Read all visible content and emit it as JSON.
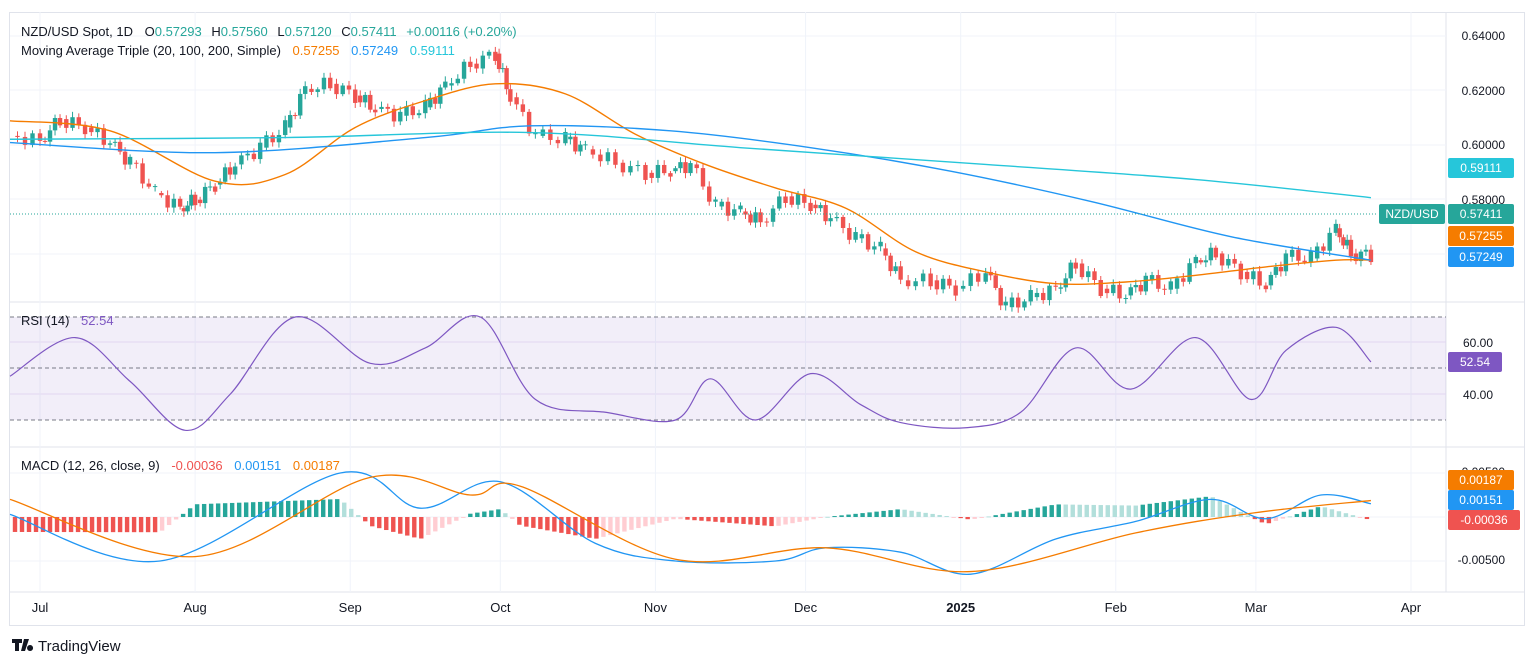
{
  "header": {
    "symbol": "NZD/USD Spot, 1D",
    "o_label": "O",
    "o": "0.57293",
    "h_label": "H",
    "h": "0.57560",
    "l_label": "L",
    "l": "0.57120",
    "c_label": "C",
    "c": "0.57411",
    "change": "+0.00116 (+0.20%)",
    "ma_title": "Moving Average Triple (20, 100, 200, Simple)",
    "ma20": "0.57255",
    "ma100": "0.57249",
    "ma200": "0.59111"
  },
  "rsi": {
    "title": "RSI (14)",
    "value": "52.54"
  },
  "macd": {
    "title": "MACD (12, 26, close, 9)",
    "hist": "-0.00036",
    "macd": "0.00151",
    "signal": "0.00187"
  },
  "price_axis": {
    "ticks": [
      "0.64000",
      "0.62000",
      "0.60000",
      "0.58000"
    ],
    "tags": {
      "ma200": "0.59111",
      "symbol": "NZD/USD",
      "last": "0.57411",
      "ma20": "0.57255",
      "ma100": "0.57249"
    }
  },
  "rsi_axis": {
    "ticks": [
      "60.00",
      "40.00"
    ],
    "tag": "52.54"
  },
  "macd_axis": {
    "ticks": [
      "0.00500",
      "-0.00500"
    ],
    "tags": {
      "signal": "0.00187",
      "macd": "0.00151",
      "hist": "-0.00036"
    }
  },
  "time_axis": [
    "Jul",
    "Aug",
    "Sep",
    "Oct",
    "Nov",
    "Dec",
    "2025",
    "Feb",
    "Mar",
    "Apr"
  ],
  "branding": "TradingView",
  "colors": {
    "up": "#26a69a",
    "down": "#ef5350",
    "ma20": "#f57c00",
    "ma100": "#2196f3",
    "ma200": "#26c6da",
    "rsi": "#7e57c2",
    "macd_line": "#2196f3",
    "signal_line": "#f57c00",
    "hist_up_strong": "#26a69a",
    "hist_up_weak": "#b2dfdb",
    "hist_dn_strong": "#ef5350",
    "hist_dn_weak": "#ffcdd2"
  },
  "chart_data": [
    {
      "type": "candlestick",
      "title": "NZD/USD Spot, 1D",
      "y_range": [
        0.566,
        0.644
      ],
      "x_range": [
        "2024-06-25",
        "2025-04-08"
      ],
      "series": [
        {
          "name": "Close",
          "values": [
            {
              "x": "2024-06-25",
              "y": 0.6095
            },
            {
              "x": "2024-07-01",
              "y": 0.608
            },
            {
              "x": "2024-07-05",
              "y": 0.6145
            },
            {
              "x": "2024-07-10",
              "y": 0.612
            },
            {
              "x": "2024-07-15",
              "y": 0.6075
            },
            {
              "x": "2024-07-19",
              "y": 0.6015
            },
            {
              "x": "2024-07-24",
              "y": 0.5925
            },
            {
              "x": "2024-07-29",
              "y": 0.588
            },
            {
              "x": "2024-08-01",
              "y": 0.5905
            },
            {
              "x": "2024-08-05",
              "y": 0.595
            },
            {
              "x": "2024-08-09",
              "y": 0.601
            },
            {
              "x": "2024-08-14",
              "y": 0.606
            },
            {
              "x": "2024-08-19",
              "y": 0.612
            },
            {
              "x": "2024-08-23",
              "y": 0.6235
            },
            {
              "x": "2024-08-28",
              "y": 0.625
            },
            {
              "x": "2024-09-02",
              "y": 0.6215
            },
            {
              "x": "2024-09-06",
              "y": 0.6175
            },
            {
              "x": "2024-09-11",
              "y": 0.6155
            },
            {
              "x": "2024-09-16",
              "y": 0.618
            },
            {
              "x": "2024-09-20",
              "y": 0.6245
            },
            {
              "x": "2024-09-25",
              "y": 0.631
            },
            {
              "x": "2024-09-30",
              "y": 0.634
            },
            {
              "x": "2024-10-03",
              "y": 0.621
            },
            {
              "x": "2024-10-08",
              "y": 0.6095
            },
            {
              "x": "2024-10-14",
              "y": 0.6085
            },
            {
              "x": "2024-10-18",
              "y": 0.6055
            },
            {
              "x": "2024-10-24",
              "y": 0.6015
            },
            {
              "x": "2024-10-30",
              "y": 0.5985
            },
            {
              "x": "2024-11-04",
              "y": 0.599
            },
            {
              "x": "2024-11-08",
              "y": 0.601
            },
            {
              "x": "2024-11-13",
              "y": 0.5885
            },
            {
              "x": "2024-11-18",
              "y": 0.587
            },
            {
              "x": "2024-11-22",
              "y": 0.584
            },
            {
              "x": "2024-11-27",
              "y": 0.5915
            },
            {
              "x": "2024-12-02",
              "y": 0.589
            },
            {
              "x": "2024-12-06",
              "y": 0.585
            },
            {
              "x": "2024-12-11",
              "y": 0.579
            },
            {
              "x": "2024-12-16",
              "y": 0.576
            },
            {
              "x": "2024-12-20",
              "y": 0.5665
            },
            {
              "x": "2024-12-26",
              "y": 0.5665
            },
            {
              "x": "2024-12-31",
              "y": 0.564
            },
            {
              "x": "2025-01-06",
              "y": 0.569
            },
            {
              "x": "2025-01-10",
              "y": 0.5585
            },
            {
              "x": "2025-01-15",
              "y": 0.5615
            },
            {
              "x": "2025-01-20",
              "y": 0.564
            },
            {
              "x": "2025-01-24",
              "y": 0.5715
            },
            {
              "x": "2025-01-29",
              "y": 0.564
            },
            {
              "x": "2025-02-03",
              "y": 0.562
            },
            {
              "x": "2025-02-07",
              "y": 0.5665
            },
            {
              "x": "2025-02-12",
              "y": 0.564
            },
            {
              "x": "2025-02-17",
              "y": 0.5725
            },
            {
              "x": "2025-02-21",
              "y": 0.5745
            },
            {
              "x": "2025-02-26",
              "y": 0.569
            },
            {
              "x": "2025-03-03",
              "y": 0.565
            },
            {
              "x": "2025-03-07",
              "y": 0.5735
            },
            {
              "x": "2025-03-12",
              "y": 0.573
            },
            {
              "x": "2025-03-17",
              "y": 0.582
            },
            {
              "x": "2025-03-20",
              "y": 0.5745
            },
            {
              "x": "2025-03-24",
              "y": 0.5741
            }
          ]
        },
        {
          "name": "MA 20",
          "values": [
            {
              "x": "2024-06-25",
              "y": 0.614
            },
            {
              "x": "2024-07-15",
              "y": 0.611
            },
            {
              "x": "2024-08-05",
              "y": 0.596
            },
            {
              "x": "2024-08-19",
              "y": 0.598
            },
            {
              "x": "2024-09-02",
              "y": 0.612
            },
            {
              "x": "2024-09-16",
              "y": 0.62
            },
            {
              "x": "2024-09-30",
              "y": 0.625
            },
            {
              "x": "2024-10-14",
              "y": 0.622
            },
            {
              "x": "2024-10-28",
              "y": 0.61
            },
            {
              "x": "2024-11-11",
              "y": 0.601
            },
            {
              "x": "2024-11-25",
              "y": 0.594
            },
            {
              "x": "2024-12-09",
              "y": 0.588
            },
            {
              "x": "2024-12-23",
              "y": 0.575
            },
            {
              "x": "2025-01-06",
              "y": 0.569
            },
            {
              "x": "2025-01-20",
              "y": 0.5655
            },
            {
              "x": "2025-02-03",
              "y": 0.566
            },
            {
              "x": "2025-02-17",
              "y": 0.568
            },
            {
              "x": "2025-03-03",
              "y": 0.5705
            },
            {
              "x": "2025-03-17",
              "y": 0.5725
            },
            {
              "x": "2025-03-24",
              "y": 0.57255
            }
          ]
        },
        {
          "name": "MA 100",
          "values": [
            {
              "x": "2024-06-25",
              "y": 0.6075
            },
            {
              "x": "2024-08-05",
              "y": 0.6045
            },
            {
              "x": "2024-09-16",
              "y": 0.609
            },
            {
              "x": "2024-10-07",
              "y": 0.6125
            },
            {
              "x": "2024-11-04",
              "y": 0.611
            },
            {
              "x": "2024-12-02",
              "y": 0.606
            },
            {
              "x": "2024-12-30",
              "y": 0.599
            },
            {
              "x": "2025-01-27",
              "y": 0.59
            },
            {
              "x": "2025-02-24",
              "y": 0.5795
            },
            {
              "x": "2025-03-24",
              "y": 0.57249
            }
          ]
        },
        {
          "name": "MA 200",
          "values": [
            {
              "x": "2024-06-25",
              "y": 0.6085
            },
            {
              "x": "2024-08-19",
              "y": 0.609
            },
            {
              "x": "2024-10-07",
              "y": 0.6105
            },
            {
              "x": "2024-11-18",
              "y": 0.606
            },
            {
              "x": "2025-01-06",
              "y": 0.601
            },
            {
              "x": "2025-02-17",
              "y": 0.5965
            },
            {
              "x": "2025-03-24",
              "y": 0.59111
            }
          ]
        }
      ],
      "y_ticks": [
        "0.64000",
        "0.62000",
        "0.60000",
        "0.58000"
      ],
      "x_ticks": [
        "Jul",
        "Aug",
        "Sep",
        "Oct",
        "Nov",
        "Dec",
        "2025",
        "Feb",
        "Mar",
        "Apr"
      ]
    },
    {
      "type": "line",
      "title": "RSI (14)",
      "y_range": [
        22,
        78
      ],
      "bands": [
        30,
        50,
        70
      ],
      "series": [
        {
          "name": "RSI (14)",
          "values": [
            {
              "x": "2024-06-25",
              "y": 47
            },
            {
              "x": "2024-07-08",
              "y": 62
            },
            {
              "x": "2024-07-19",
              "y": 45
            },
            {
              "x": "2024-07-30",
              "y": 26
            },
            {
              "x": "2024-08-08",
              "y": 40
            },
            {
              "x": "2024-08-21",
              "y": 70
            },
            {
              "x": "2024-09-05",
              "y": 52
            },
            {
              "x": "2024-09-16",
              "y": 58
            },
            {
              "x": "2024-09-27",
              "y": 70
            },
            {
              "x": "2024-10-08",
              "y": 38
            },
            {
              "x": "2024-10-22",
              "y": 33
            },
            {
              "x": "2024-11-05",
              "y": 30
            },
            {
              "x": "2024-11-12",
              "y": 46
            },
            {
              "x": "2024-11-21",
              "y": 30
            },
            {
              "x": "2024-12-02",
              "y": 48
            },
            {
              "x": "2024-12-12",
              "y": 36
            },
            {
              "x": "2024-12-20",
              "y": 29
            },
            {
              "x": "2025-01-02",
              "y": 27
            },
            {
              "x": "2025-01-13",
              "y": 33
            },
            {
              "x": "2025-01-24",
              "y": 58
            },
            {
              "x": "2025-02-04",
              "y": 42
            },
            {
              "x": "2025-02-17",
              "y": 62
            },
            {
              "x": "2025-02-28",
              "y": 38
            },
            {
              "x": "2025-03-07",
              "y": 57
            },
            {
              "x": "2025-03-17",
              "y": 66
            },
            {
              "x": "2025-03-24",
              "y": 52.54
            }
          ]
        }
      ],
      "y_ticks": [
        "60.00",
        "40.00"
      ]
    },
    {
      "type": "line",
      "title": "MACD (12, 26, close, 9)",
      "y_range": [
        -0.0085,
        0.0065
      ],
      "series": [
        {
          "name": "MACD",
          "values": [
            {
              "x": "2024-06-25",
              "y": 0.0003
            },
            {
              "x": "2024-07-25",
              "y": -0.005
            },
            {
              "x": "2024-08-30",
              "y": 0.005
            },
            {
              "x": "2024-09-15",
              "y": 0.001
            },
            {
              "x": "2024-10-01",
              "y": 0.004
            },
            {
              "x": "2024-10-20",
              "y": -0.003
            },
            {
              "x": "2024-11-05",
              "y": -0.005
            },
            {
              "x": "2024-11-25",
              "y": -0.005
            },
            {
              "x": "2024-12-05",
              "y": -0.0035
            },
            {
              "x": "2024-12-20",
              "y": -0.004
            },
            {
              "x": "2025-01-03",
              "y": -0.0065
            },
            {
              "x": "2025-01-20",
              "y": -0.0025
            },
            {
              "x": "2025-02-05",
              "y": -0.0005
            },
            {
              "x": "2025-02-20",
              "y": 0.002
            },
            {
              "x": "2025-03-03",
              "y": -0.0002
            },
            {
              "x": "2025-03-14",
              "y": 0.0025
            },
            {
              "x": "2025-03-24",
              "y": 0.00151
            }
          ]
        },
        {
          "name": "Signal",
          "values": [
            {
              "x": "2024-06-25",
              "y": 0.002
            },
            {
              "x": "2024-08-01",
              "y": -0.0045
            },
            {
              "x": "2024-09-05",
              "y": 0.0045
            },
            {
              "x": "2024-09-25",
              "y": 0.0025
            },
            {
              "x": "2024-10-05",
              "y": 0.0035
            },
            {
              "x": "2024-11-05",
              "y": -0.0048
            },
            {
              "x": "2024-12-05",
              "y": -0.0035
            },
            {
              "x": "2025-01-03",
              "y": -0.0062
            },
            {
              "x": "2025-02-05",
              "y": -0.0018
            },
            {
              "x": "2025-03-01",
              "y": 0.0005
            },
            {
              "x": "2025-03-24",
              "y": 0.00187
            }
          ]
        }
      ],
      "y_ticks": [
        "0.00500",
        "-0.00500"
      ]
    }
  ]
}
